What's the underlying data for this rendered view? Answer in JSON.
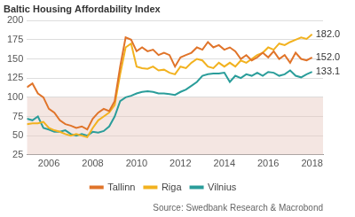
{
  "chart_data": {
    "type": "line",
    "title": "Baltic Housing Affordability Index",
    "source": "Source: Swedbank Research & Macrobond",
    "x": [
      2005,
      2005.25,
      2005.5,
      2005.75,
      2006,
      2006.25,
      2006.5,
      2006.75,
      2007,
      2007.25,
      2007.5,
      2007.75,
      2008,
      2008.25,
      2008.5,
      2008.75,
      2009,
      2009.25,
      2009.5,
      2009.75,
      2010,
      2010.25,
      2010.5,
      2010.75,
      2011,
      2011.25,
      2011.5,
      2011.75,
      2012,
      2012.25,
      2012.5,
      2012.75,
      2013,
      2013.25,
      2013.5,
      2013.75,
      2014,
      2014.25,
      2014.5,
      2014.75,
      2015,
      2015.25,
      2015.5,
      2015.75,
      2016,
      2016.25,
      2016.5,
      2016.75,
      2017,
      2017.25,
      2017.5,
      2017.75,
      2018
    ],
    "series": [
      {
        "name": "Tallinn",
        "color": "#e0742a",
        "end_label": "152.0",
        "values": [
          113,
          118,
          105,
          100,
          85,
          80,
          70,
          65,
          63,
          60,
          62,
          58,
          72,
          80,
          85,
          82,
          95,
          140,
          178,
          175,
          160,
          165,
          160,
          162,
          155,
          158,
          155,
          140,
          152,
          155,
          158,
          165,
          162,
          172,
          165,
          168,
          162,
          165,
          160,
          150,
          155,
          148,
          152,
          158,
          152,
          160,
          150,
          155,
          145,
          158,
          150,
          148,
          152
        ]
      },
      {
        "name": "Riga",
        "color": "#f2b21f",
        "end_label": "182.0",
        "values": [
          65,
          66,
          66,
          68,
          60,
          57,
          55,
          52,
          50,
          52,
          50,
          48,
          60,
          70,
          75,
          80,
          90,
          130,
          165,
          170,
          140,
          138,
          137,
          140,
          135,
          136,
          132,
          130,
          140,
          138,
          145,
          150,
          148,
          140,
          138,
          145,
          140,
          145,
          140,
          148,
          145,
          150,
          155,
          158,
          165,
          162,
          170,
          168,
          172,
          175,
          178,
          176,
          182
        ]
      },
      {
        "name": "Vilnius",
        "color": "#2a9d9a",
        "end_label": "133.1",
        "values": [
          72,
          70,
          75,
          60,
          58,
          55,
          55,
          57,
          52,
          50,
          52,
          50,
          55,
          54,
          56,
          62,
          75,
          95,
          100,
          102,
          105,
          107,
          108,
          107,
          105,
          105,
          104,
          103,
          107,
          110,
          115,
          120,
          128,
          130,
          131,
          131,
          132,
          120,
          128,
          125,
          130,
          128,
          132,
          128,
          133,
          132,
          128,
          130,
          135,
          128,
          126,
          130,
          133.1
        ]
      }
    ],
    "band": [
      25,
      100
    ],
    "xlim": [
      2005,
      2018.5
    ],
    "xticks": [
      2006,
      2008,
      2010,
      2012,
      2014,
      2016,
      2018
    ],
    "ylim": [
      25,
      200
    ],
    "yticks": [
      25,
      50,
      75,
      100,
      125,
      150,
      175,
      200
    ],
    "grid": "y",
    "legend": "bottom"
  }
}
